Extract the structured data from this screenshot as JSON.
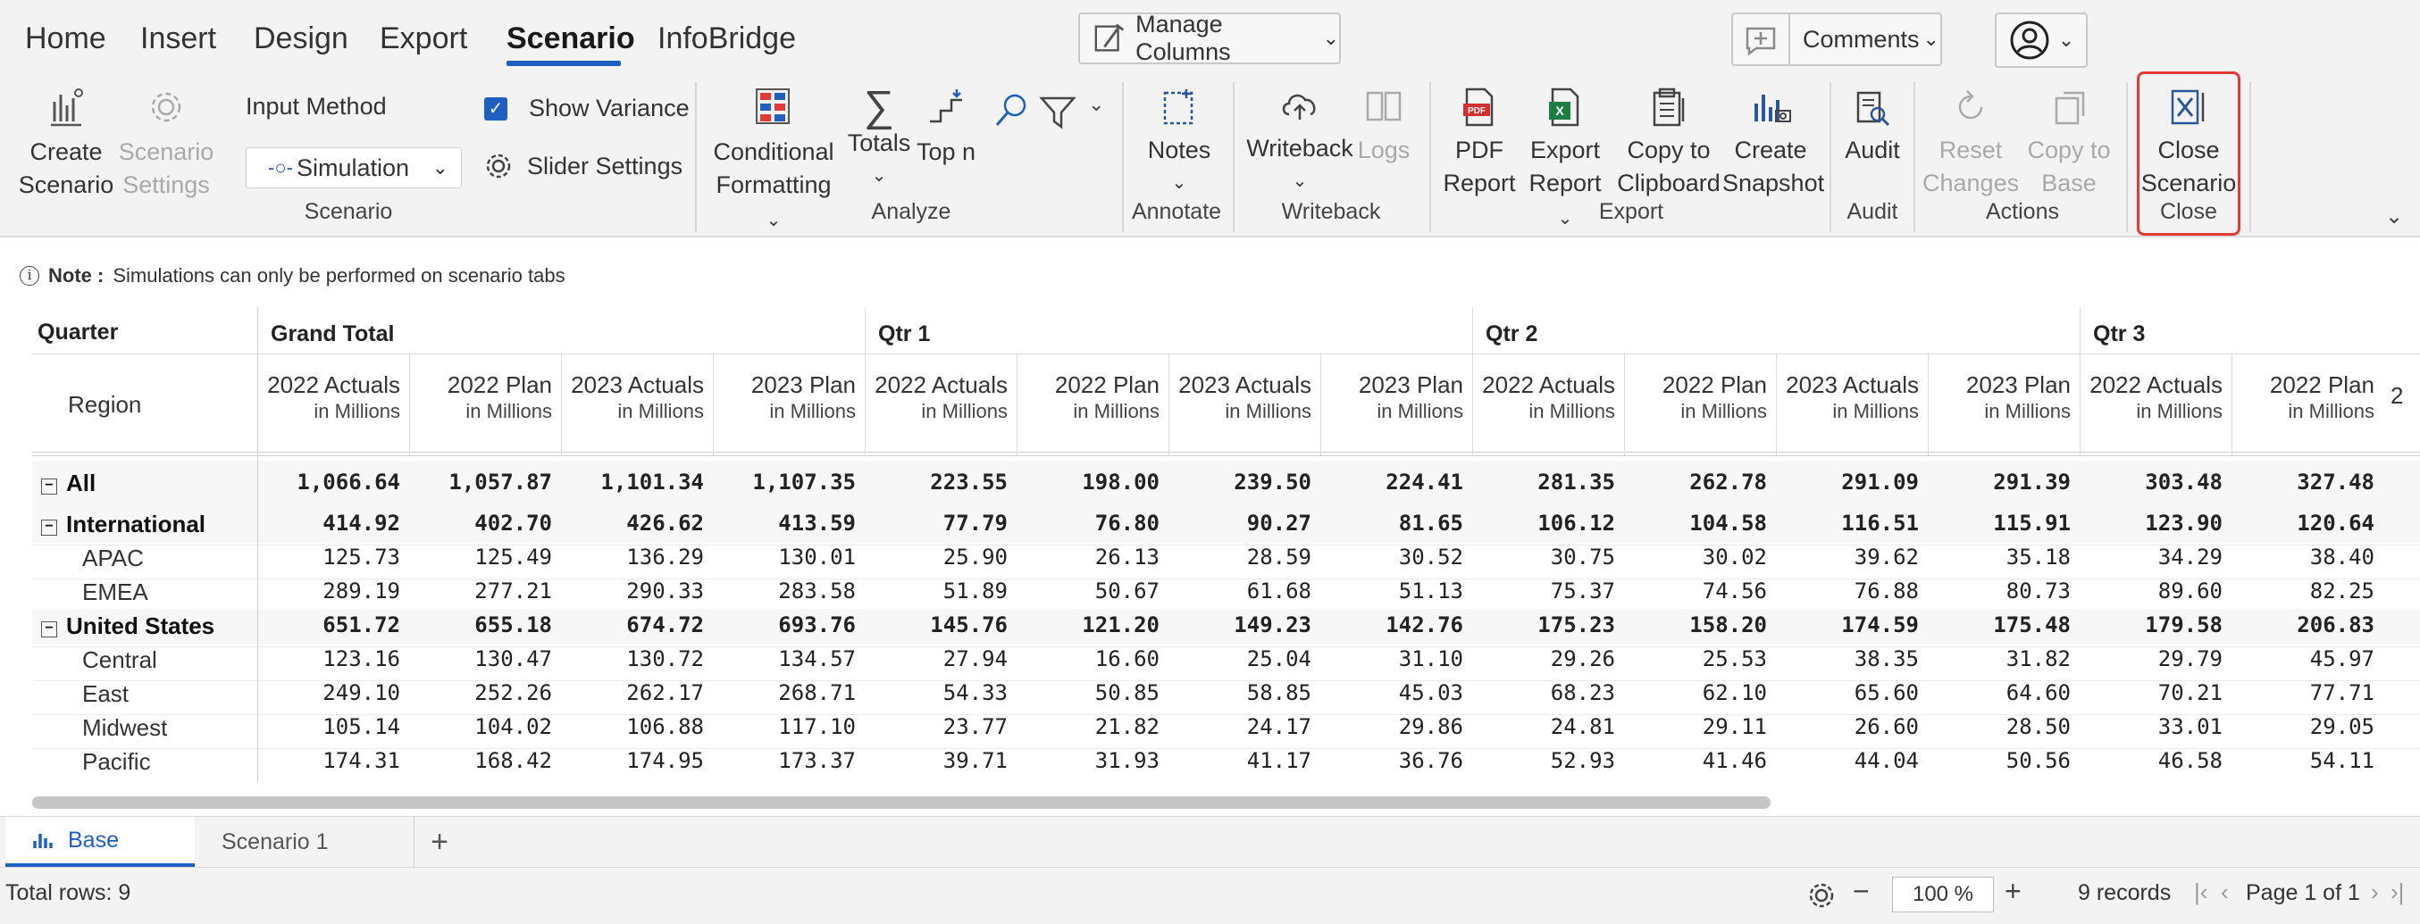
{
  "menu": {
    "tabs": [
      "Home",
      "Insert",
      "Design",
      "Export",
      "Scenario",
      "InfoBridge"
    ],
    "active": "Scenario",
    "manage_columns": "Manage Columns",
    "comments": "Comments"
  },
  "ribbon": {
    "create_scenario": [
      "Create",
      "Scenario"
    ],
    "scenario_settings": [
      "Scenario",
      "Settings"
    ],
    "input_method_label": "Input Method",
    "input_method_value": "Simulation",
    "show_variance": "Show Variance",
    "slider_settings": "Slider Settings",
    "conditional_formatting": [
      "Conditional",
      "Formatting"
    ],
    "totals": "Totals",
    "top_n": "Top n",
    "notes": "Notes",
    "writeback": "Writeback",
    "logs": "Logs",
    "pdf_report": [
      "PDF",
      "Report"
    ],
    "export_report": [
      "Export",
      "Report"
    ],
    "copy_clipboard": [
      "Copy to",
      "Clipboard"
    ],
    "create_snapshot": [
      "Create",
      "Snapshot"
    ],
    "audit": "Audit",
    "reset_changes": [
      "Reset",
      "Changes"
    ],
    "copy_to_base": [
      "Copy to",
      "Base"
    ],
    "close_scenario": [
      "Close",
      "Scenario"
    ],
    "groups": {
      "scenario": "Scenario",
      "analyze": "Analyze",
      "annotate": "Annotate",
      "writeback": "Writeback",
      "export": "Export",
      "audit": "Audit",
      "actions": "Actions",
      "close": "Close"
    }
  },
  "note": {
    "label": "Note :",
    "text": "Simulations can only be performed on scenario tabs"
  },
  "grid": {
    "corner_quarter": "Quarter",
    "corner_region": "Region",
    "quarters": [
      "Grand Total",
      "Qtr 1",
      "Qtr 2",
      "Qtr 3"
    ],
    "measures": [
      "2022 Actuals",
      "2022 Plan",
      "2023 Actuals",
      "2023 Plan"
    ],
    "unit": "in Millions",
    "clipped_next": "2",
    "rows": [
      {
        "label": "All",
        "bold": true,
        "toggle": true,
        "indent": 0,
        "values": [
          "1,066.64",
          "1,057.87",
          "1,101.34",
          "1,107.35",
          "223.55",
          "198.00",
          "239.50",
          "224.41",
          "281.35",
          "262.78",
          "291.09",
          "291.39",
          "303.48",
          "327.48"
        ]
      },
      {
        "label": "International",
        "bold": true,
        "toggle": true,
        "indent": 0,
        "values": [
          "414.92",
          "402.70",
          "426.62",
          "413.59",
          "77.79",
          "76.80",
          "90.27",
          "81.65",
          "106.12",
          "104.58",
          "116.51",
          "115.91",
          "123.90",
          "120.64"
        ]
      },
      {
        "label": "APAC",
        "bold": false,
        "toggle": false,
        "indent": 1,
        "values": [
          "125.73",
          "125.49",
          "136.29",
          "130.01",
          "25.90",
          "26.13",
          "28.59",
          "30.52",
          "30.75",
          "30.02",
          "39.62",
          "35.18",
          "34.29",
          "38.40"
        ]
      },
      {
        "label": "EMEA",
        "bold": false,
        "toggle": false,
        "indent": 1,
        "values": [
          "289.19",
          "277.21",
          "290.33",
          "283.58",
          "51.89",
          "50.67",
          "61.68",
          "51.13",
          "75.37",
          "74.56",
          "76.88",
          "80.73",
          "89.60",
          "82.25"
        ]
      },
      {
        "label": "United States",
        "bold": true,
        "toggle": true,
        "indent": 0,
        "values": [
          "651.72",
          "655.18",
          "674.72",
          "693.76",
          "145.76",
          "121.20",
          "149.23",
          "142.76",
          "175.23",
          "158.20",
          "174.59",
          "175.48",
          "179.58",
          "206.83"
        ]
      },
      {
        "label": "Central",
        "bold": false,
        "toggle": false,
        "indent": 1,
        "values": [
          "123.16",
          "130.47",
          "130.72",
          "134.57",
          "27.94",
          "16.60",
          "25.04",
          "31.10",
          "29.26",
          "25.53",
          "38.35",
          "31.82",
          "29.79",
          "45.97"
        ]
      },
      {
        "label": "East",
        "bold": false,
        "toggle": false,
        "indent": 1,
        "values": [
          "249.10",
          "252.26",
          "262.17",
          "268.71",
          "54.33",
          "50.85",
          "58.85",
          "45.03",
          "68.23",
          "62.10",
          "65.60",
          "64.60",
          "70.21",
          "77.71"
        ]
      },
      {
        "label": "Midwest",
        "bold": false,
        "toggle": false,
        "indent": 1,
        "values": [
          "105.14",
          "104.02",
          "106.88",
          "117.10",
          "23.77",
          "21.82",
          "24.17",
          "29.86",
          "24.81",
          "29.11",
          "26.60",
          "28.50",
          "33.01",
          "29.05"
        ]
      },
      {
        "label": "Pacific",
        "bold": false,
        "toggle": false,
        "indent": 1,
        "values": [
          "174.31",
          "168.42",
          "174.95",
          "173.37",
          "39.71",
          "31.93",
          "41.17",
          "36.76",
          "52.93",
          "41.46",
          "44.04",
          "50.56",
          "46.58",
          "54.11"
        ]
      }
    ]
  },
  "sheet_tabs": [
    "Base",
    "Scenario 1"
  ],
  "status": {
    "total_rows": "Total rows: 9",
    "zoom": "100 %",
    "records": "9 records",
    "page": "Page 1 of 1"
  },
  "colors": {
    "accent": "#1f5fbf",
    "highlight_border": "#e53935",
    "excel_green": "#1e7d43",
    "pdf_red": "#d32f2f",
    "icon_blue": "#2b579a"
  }
}
